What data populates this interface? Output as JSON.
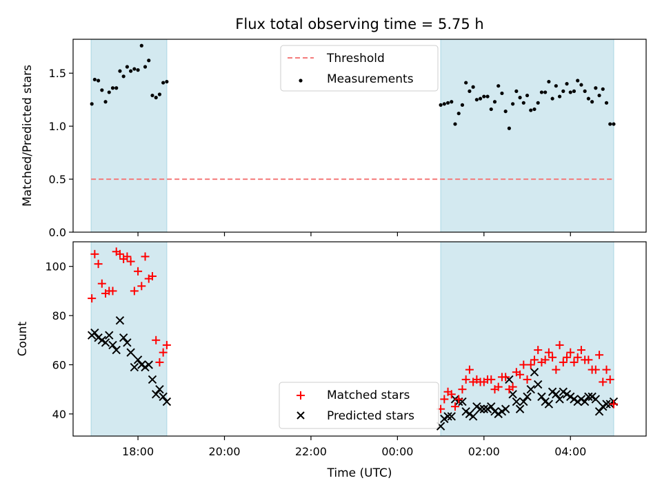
{
  "chart_data": [
    {
      "type": "scatter",
      "title": "Flux total observing time = 5.75 h",
      "xlabel": "",
      "ylabel": "Matched/Predicted stars",
      "ylim": [
        0,
        1.82
      ],
      "yticks": [
        "0.0",
        "0.5",
        "1.0",
        "1.5"
      ],
      "grid": false,
      "legend": "top-center",
      "shaded_intervals": [
        [
          "16:55",
          "18:40"
        ],
        [
          "01:00",
          "05:00"
        ]
      ],
      "shade_color": "#d3e9f0",
      "threshold": {
        "name": "Threshold",
        "value": 0.5,
        "color": "#f47a7a"
      },
      "series": [
        {
          "name": "Measurements",
          "color": "#000000",
          "x": [
            "16:56",
            "17:00",
            "17:05",
            "17:10",
            "17:15",
            "17:20",
            "17:25",
            "17:30",
            "17:35",
            "17:40",
            "17:45",
            "17:50",
            "17:55",
            "18:00",
            "18:05",
            "18:10",
            "18:15",
            "18:20",
            "18:25",
            "18:30",
            "18:35",
            "18:40",
            "01:00",
            "01:05",
            "01:10",
            "01:15",
            "01:20",
            "01:25",
            "01:30",
            "01:35",
            "01:40",
            "01:45",
            "01:50",
            "01:55",
            "02:00",
            "02:05",
            "02:10",
            "02:15",
            "02:20",
            "02:25",
            "02:30",
            "02:35",
            "02:40",
            "02:45",
            "02:50",
            "02:55",
            "03:00",
            "03:05",
            "03:10",
            "03:15",
            "03:20",
            "03:25",
            "03:30",
            "03:35",
            "03:40",
            "03:45",
            "03:50",
            "03:55",
            "04:00",
            "04:05",
            "04:10",
            "04:15",
            "04:20",
            "04:25",
            "04:30",
            "04:35",
            "04:40",
            "04:45",
            "04:50",
            "04:55",
            "05:00"
          ],
          "y": [
            1.21,
            1.44,
            1.43,
            1.34,
            1.23,
            1.32,
            1.36,
            1.36,
            1.52,
            1.47,
            1.56,
            1.52,
            1.54,
            1.53,
            1.76,
            1.56,
            1.62,
            1.29,
            1.27,
            1.3,
            1.41,
            1.42,
            1.2,
            1.21,
            1.22,
            1.23,
            1.02,
            1.12,
            1.2,
            1.41,
            1.33,
            1.37,
            1.25,
            1.26,
            1.28,
            1.28,
            1.16,
            1.23,
            1.38,
            1.31,
            1.14,
            0.98,
            1.21,
            1.33,
            1.27,
            1.22,
            1.29,
            1.15,
            1.16,
            1.22,
            1.32,
            1.32,
            1.42,
            1.26,
            1.38,
            1.28,
            1.33,
            1.4,
            1.32,
            1.33,
            1.43,
            1.39,
            1.33,
            1.26,
            1.23,
            1.36,
            1.29,
            1.35,
            1.22,
            1.02,
            1.02
          ]
        }
      ]
    },
    {
      "type": "scatter",
      "xlabel": "Time (UTC)",
      "ylabel": "Count",
      "ylim": [
        31,
        110
      ],
      "yticks": [
        "40",
        "60",
        "80",
        "100"
      ],
      "xticks": [
        "18:00",
        "20:00",
        "22:00",
        "00:00",
        "02:00",
        "04:00"
      ],
      "grid": false,
      "legend": "bottom-center",
      "series": [
        {
          "name": "Matched stars",
          "color": "#ff0000",
          "marker": "+",
          "x": [
            "16:56",
            "17:00",
            "17:05",
            "17:10",
            "17:15",
            "17:20",
            "17:25",
            "17:30",
            "17:35",
            "17:40",
            "17:45",
            "17:50",
            "17:55",
            "18:00",
            "18:05",
            "18:10",
            "18:15",
            "18:20",
            "18:25",
            "18:30",
            "18:35",
            "18:40",
            "01:00",
            "01:05",
            "01:10",
            "01:15",
            "01:20",
            "01:25",
            "01:30",
            "01:35",
            "01:40",
            "01:45",
            "01:50",
            "01:55",
            "02:00",
            "02:05",
            "02:10",
            "02:15",
            "02:20",
            "02:25",
            "02:30",
            "02:35",
            "02:40",
            "02:45",
            "02:50",
            "02:55",
            "03:00",
            "03:05",
            "03:10",
            "03:15",
            "03:20",
            "03:25",
            "03:30",
            "03:35",
            "03:40",
            "03:45",
            "03:50",
            "03:55",
            "04:00",
            "04:05",
            "04:10",
            "04:15",
            "04:20",
            "04:25",
            "04:30",
            "04:35",
            "04:40",
            "04:45",
            "04:50",
            "04:55",
            "05:00"
          ],
          "y": [
            87,
            105,
            101,
            93,
            89,
            90,
            90,
            106,
            105,
            103,
            104,
            102,
            90,
            98,
            92,
            104,
            95,
            96,
            70,
            61,
            65,
            68,
            42,
            46,
            49,
            48,
            43,
            46,
            50,
            54,
            58,
            53,
            54,
            53,
            53,
            54,
            54,
            50,
            51,
            55,
            55,
            50,
            51,
            57,
            56,
            60,
            54,
            60,
            62,
            66,
            61,
            62,
            65,
            63,
            58,
            68,
            61,
            63,
            65,
            61,
            63,
            66,
            62,
            62,
            58,
            58,
            64,
            53,
            58,
            54,
            44
          ]
        },
        {
          "name": "Predicted stars",
          "color": "#000000",
          "marker": "x",
          "x": [
            "16:56",
            "17:00",
            "17:05",
            "17:10",
            "17:15",
            "17:20",
            "17:25",
            "17:30",
            "17:35",
            "17:40",
            "17:45",
            "17:50",
            "17:55",
            "18:00",
            "18:05",
            "18:10",
            "18:15",
            "18:20",
            "18:25",
            "18:30",
            "18:35",
            "18:40",
            "01:00",
            "01:05",
            "01:10",
            "01:15",
            "01:20",
            "01:25",
            "01:30",
            "01:35",
            "01:40",
            "01:45",
            "01:50",
            "01:55",
            "02:00",
            "02:05",
            "02:10",
            "02:15",
            "02:20",
            "02:25",
            "02:30",
            "02:35",
            "02:40",
            "02:45",
            "02:50",
            "02:55",
            "03:00",
            "03:05",
            "03:10",
            "03:15",
            "03:20",
            "03:25",
            "03:30",
            "03:35",
            "03:40",
            "03:45",
            "03:50",
            "03:55",
            "04:00",
            "04:05",
            "04:10",
            "04:15",
            "04:20",
            "04:25",
            "04:30",
            "04:35",
            "04:40",
            "04:45",
            "04:50",
            "04:55",
            "05:00"
          ],
          "y": [
            72,
            73,
            71,
            70,
            69,
            72,
            68,
            66,
            78,
            71,
            69,
            65,
            59,
            62,
            60,
            59,
            60,
            54,
            48,
            50,
            47,
            45,
            35,
            38,
            39,
            39,
            46,
            45,
            45,
            41,
            40,
            39,
            43,
            42,
            42,
            42,
            43,
            41,
            40,
            41,
            42,
            54,
            48,
            45,
            42,
            45,
            47,
            50,
            57,
            52,
            47,
            45,
            44,
            49,
            48,
            46,
            49,
            48,
            47,
            46,
            45,
            46,
            45,
            47,
            47,
            46,
            41,
            43,
            44,
            44,
            45
          ]
        }
      ]
    }
  ]
}
